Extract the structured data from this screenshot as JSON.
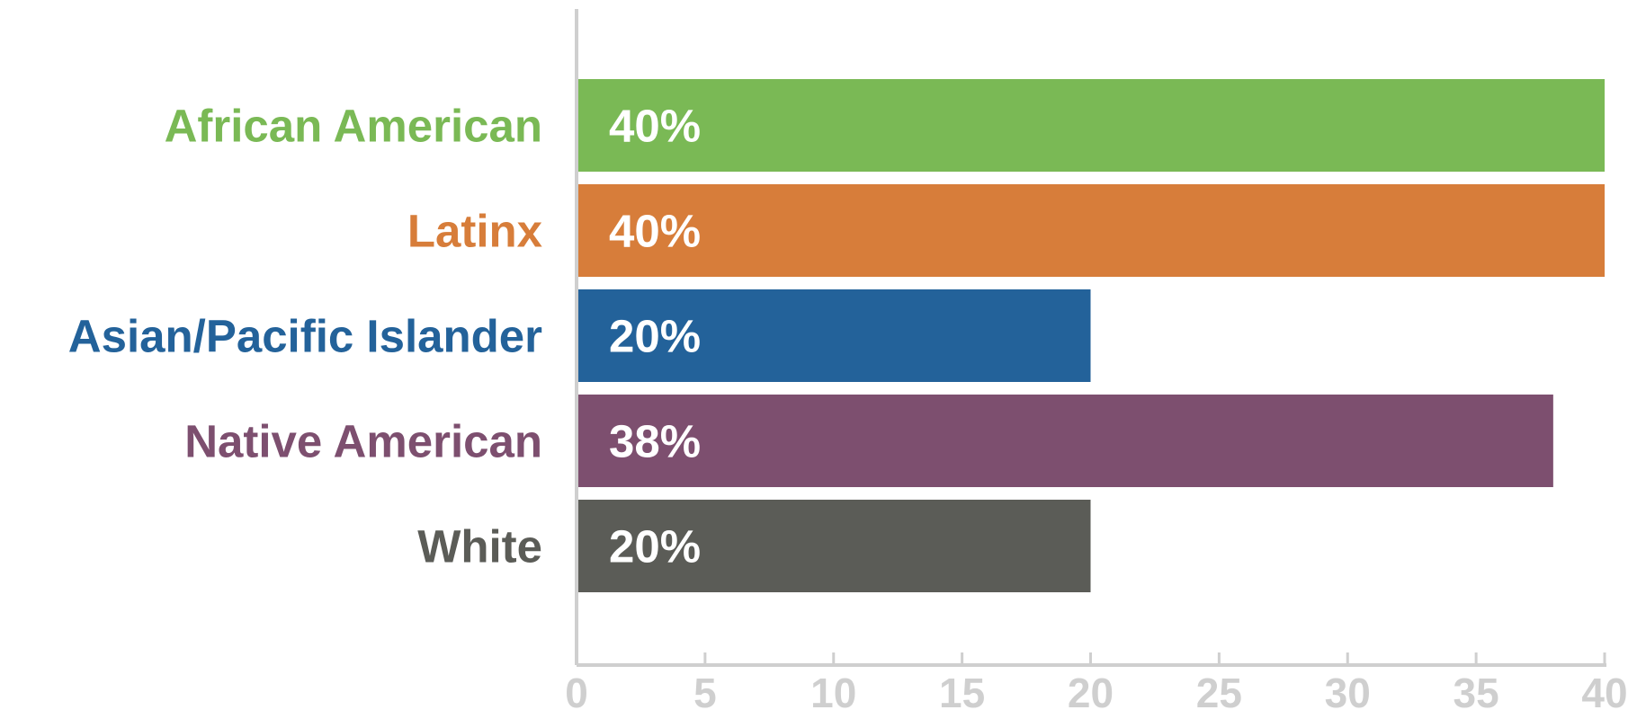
{
  "chart_data": {
    "type": "bar",
    "orientation": "horizontal",
    "categories": [
      "African American",
      "Latinx",
      "Asian/Pacific Islander",
      "Native American",
      "White"
    ],
    "values": [
      40,
      40,
      20,
      38,
      20
    ],
    "data_labels": [
      "40%",
      "40%",
      "20%",
      "38%",
      "20%"
    ],
    "colors": [
      "#7ab955",
      "#d77d3a",
      "#23629a",
      "#7d4f6f",
      "#5b5c57"
    ],
    "xlim": [
      0,
      40
    ],
    "xticks": [
      0,
      5,
      10,
      15,
      20,
      25,
      30,
      35,
      40
    ],
    "tick_labels": [
      "0",
      "5",
      "10",
      "15",
      "20",
      "25",
      "30",
      "35",
      "40"
    ],
    "grid": false,
    "axis_color": "#cfcfcf",
    "title": "",
    "xlabel": "",
    "ylabel": ""
  }
}
